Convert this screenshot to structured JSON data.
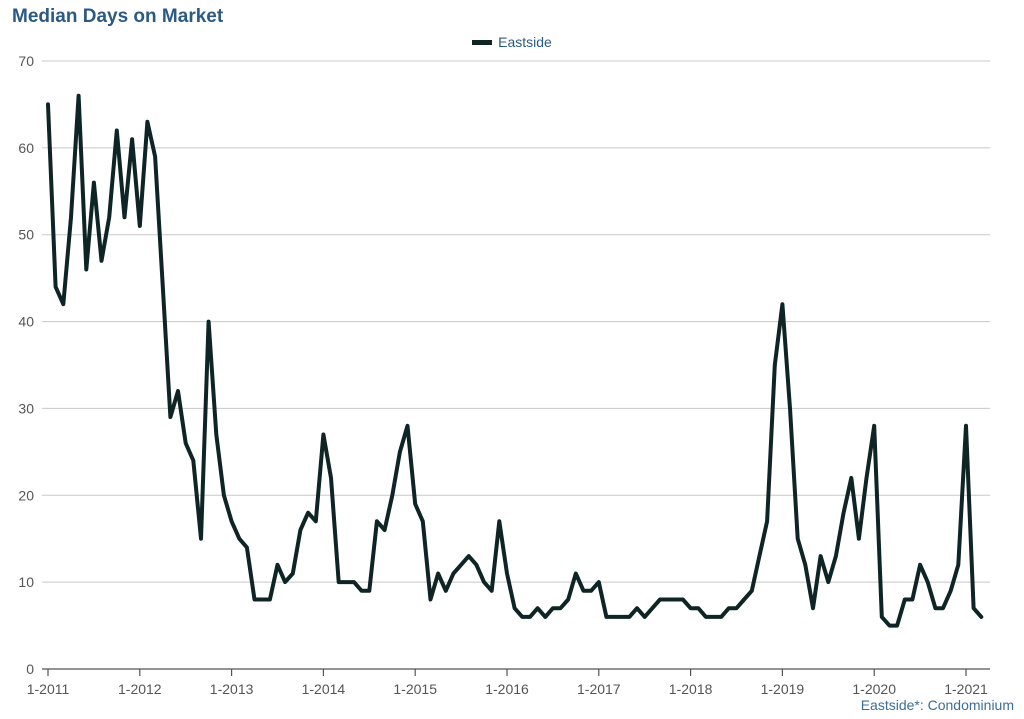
{
  "chart_data": {
    "type": "line",
    "title": "Median Days on Market",
    "xlabel": "",
    "ylabel": "",
    "ylim": [
      0,
      70
    ],
    "yticks": [
      0,
      10,
      20,
      30,
      40,
      50,
      60,
      70
    ],
    "grid": true,
    "legend_position": "top-center",
    "x_tick_labels": [
      "1-2011",
      "1-2012",
      "1-2013",
      "1-2014",
      "1-2015",
      "1-2016",
      "1-2017",
      "1-2018",
      "1-2019",
      "1-2020",
      "1-2021"
    ],
    "x_start": "1-2011",
    "x_end": "3-2021",
    "series": [
      {
        "name": "Eastside",
        "color": "#0f2424",
        "values": [
          65,
          44,
          42,
          52,
          66,
          46,
          56,
          47,
          52,
          62,
          52,
          61,
          51,
          63,
          59,
          44,
          29,
          32,
          26,
          24,
          15,
          40,
          27,
          20,
          17,
          15,
          14,
          8,
          8,
          8,
          12,
          10,
          11,
          16,
          18,
          17,
          27,
          22,
          10,
          10,
          10,
          9,
          9,
          17,
          16,
          20,
          25,
          28,
          19,
          17,
          8,
          11,
          9,
          11,
          12,
          13,
          12,
          10,
          9,
          17,
          11,
          7,
          6,
          6,
          7,
          6,
          7,
          7,
          8,
          11,
          9,
          9,
          10,
          6,
          6,
          6,
          6,
          7,
          6,
          7,
          8,
          8,
          8,
          8,
          7,
          7,
          6,
          6,
          6,
          7,
          7,
          8,
          9,
          13,
          17,
          35,
          42,
          30,
          15,
          12,
          7,
          13,
          10,
          13,
          18,
          22,
          15,
          22,
          28,
          6,
          5,
          5,
          8,
          8,
          12,
          10,
          7,
          7,
          9,
          12,
          28,
          7,
          6
        ]
      }
    ]
  },
  "footnote": "Eastside*: Condominium"
}
